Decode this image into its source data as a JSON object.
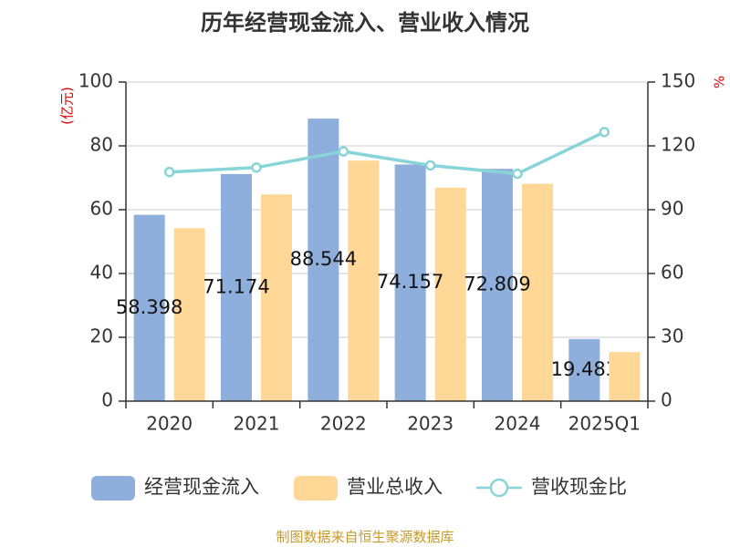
{
  "chart_data": {
    "type": "bar",
    "title": "历年经营现金流入、营业收入情况",
    "categories": [
      "2020",
      "2021",
      "2022",
      "2023",
      "2024",
      "2025Q1"
    ],
    "series": [
      {
        "name": "经营现金流入",
        "type": "bar",
        "axis": "left",
        "color": "#8eaedc",
        "values": [
          58.398,
          71.174,
          88.544,
          74.157,
          72.809,
          19.483
        ],
        "labels": [
          "58.398",
          "71.174",
          "88.544",
          "74.157",
          "72.809",
          "19.483"
        ]
      },
      {
        "name": "营业总收入",
        "type": "bar",
        "axis": "left",
        "color": "#ffd898",
        "values": [
          54.2,
          64.8,
          75.4,
          66.9,
          68.1,
          15.4
        ]
      },
      {
        "name": "营收现金比",
        "type": "line",
        "axis": "right",
        "color": "#88d4d8",
        "values": [
          107.7,
          109.8,
          117.4,
          110.8,
          106.9,
          126.5
        ]
      }
    ],
    "y_left": {
      "label": "(亿元)",
      "min": 0,
      "max": 100,
      "ticks": [
        0,
        20,
        40,
        60,
        80,
        100
      ]
    },
    "y_right": {
      "label": "%",
      "min": 0,
      "max": 150,
      "ticks": [
        0,
        30,
        60,
        90,
        120,
        150
      ]
    },
    "grid": true,
    "legend_position": "bottom"
  },
  "footer": {
    "source": "制图数据来自恒生聚源数据库"
  }
}
